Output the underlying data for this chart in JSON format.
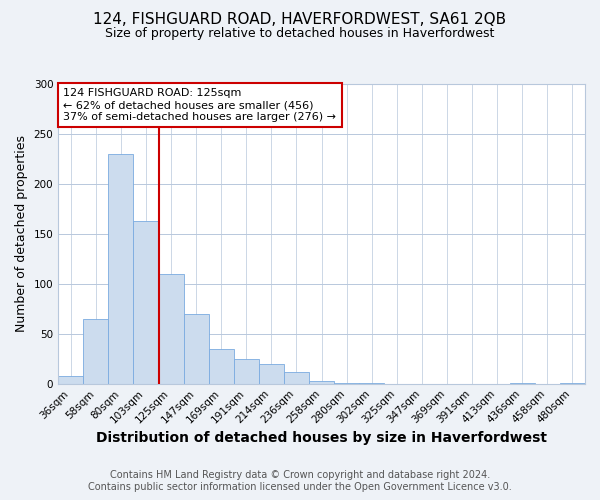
{
  "title": "124, FISHGUARD ROAD, HAVERFORDWEST, SA61 2QB",
  "subtitle": "Size of property relative to detached houses in Haverfordwest",
  "xlabel": "Distribution of detached houses by size in Haverfordwest",
  "ylabel": "Number of detached properties",
  "bar_color": "#ccdcee",
  "bar_edge_color": "#7aabe0",
  "bar_categories": [
    "36sqm",
    "58sqm",
    "80sqm",
    "103sqm",
    "125sqm",
    "147sqm",
    "169sqm",
    "191sqm",
    "214sqm",
    "236sqm",
    "258sqm",
    "280sqm",
    "302sqm",
    "325sqm",
    "347sqm",
    "369sqm",
    "391sqm",
    "413sqm",
    "436sqm",
    "458sqm",
    "480sqm"
  ],
  "bar_values": [
    8,
    65,
    230,
    163,
    110,
    70,
    35,
    25,
    20,
    12,
    3,
    1,
    1,
    0,
    0,
    0,
    0,
    0,
    1,
    0,
    1
  ],
  "ylim": [
    0,
    300
  ],
  "yticks": [
    0,
    50,
    100,
    150,
    200,
    250,
    300
  ],
  "vline_color": "#cc0000",
  "annotation_title": "124 FISHGUARD ROAD: 125sqm",
  "annotation_line1": "← 62% of detached houses are smaller (456)",
  "annotation_line2": "37% of semi-detached houses are larger (276) →",
  "annotation_box_color": "#ffffff",
  "annotation_box_edge_color": "#cc0000",
  "footer_line1": "Contains HM Land Registry data © Crown copyright and database right 2024.",
  "footer_line2": "Contains public sector information licensed under the Open Government Licence v3.0.",
  "background_color": "#eef2f7",
  "plot_background_color": "#ffffff",
  "grid_color": "#b8c8dc",
  "title_fontsize": 11,
  "subtitle_fontsize": 9,
  "xlabel_fontsize": 10,
  "ylabel_fontsize": 9,
  "tick_fontsize": 7.5,
  "annotation_fontsize": 8,
  "footer_fontsize": 7
}
